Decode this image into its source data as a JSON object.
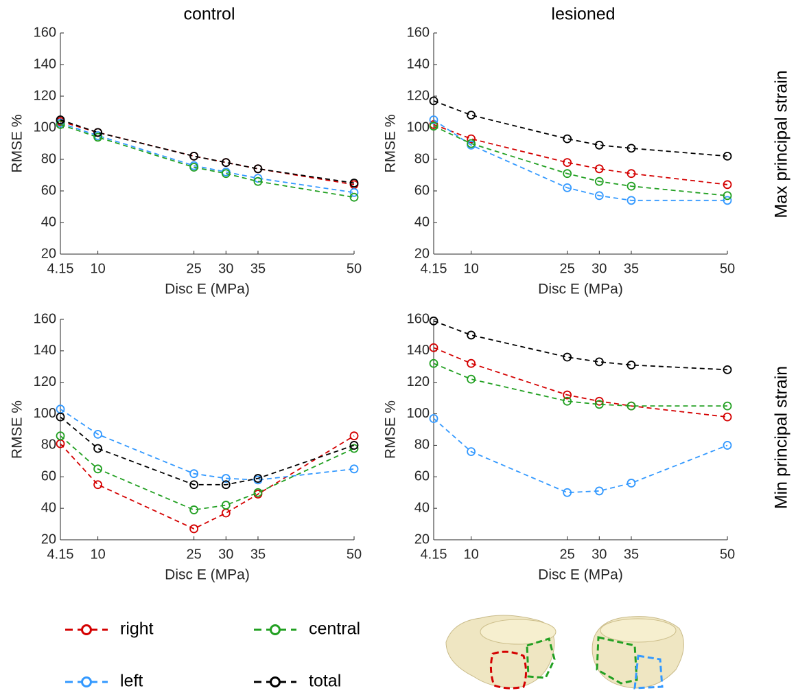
{
  "column_titles": [
    "control",
    "lesioned"
  ],
  "row_titles": [
    "Max principal strain",
    "Min principal strain"
  ],
  "chart_data": [
    {
      "type": "line",
      "xlabel": "Disc E (MPa)",
      "ylabel": "RMSE %",
      "x": [
        4.15,
        10,
        25,
        30,
        35,
        50
      ],
      "xlim": [
        4.15,
        50
      ],
      "xticks": [
        4.15,
        10,
        25,
        30,
        35,
        50
      ],
      "ylim": [
        20,
        160
      ],
      "yticks": [
        20,
        40,
        60,
        80,
        100,
        120,
        140,
        160
      ],
      "series": [
        {
          "name": "right",
          "color": "#d40000",
          "values": [
            104,
            97,
            82,
            78,
            74,
            64
          ]
        },
        {
          "name": "left",
          "color": "#3399ff",
          "values": [
            103,
            95,
            76,
            72,
            68,
            59
          ]
        },
        {
          "name": "central",
          "color": "#22a022",
          "values": [
            102,
            94,
            75,
            71,
            66,
            56
          ]
        },
        {
          "name": "total",
          "color": "#000000",
          "values": [
            105,
            97,
            82,
            78,
            74,
            65
          ]
        }
      ]
    },
    {
      "type": "line",
      "xlabel": "Disc E (MPa)",
      "ylabel": "RMSE %",
      "x": [
        4.15,
        10,
        25,
        30,
        35,
        50
      ],
      "xlim": [
        4.15,
        50
      ],
      "xticks": [
        4.15,
        10,
        25,
        30,
        35,
        50
      ],
      "ylim": [
        20,
        160
      ],
      "yticks": [
        20,
        40,
        60,
        80,
        100,
        120,
        140,
        160
      ],
      "series": [
        {
          "name": "right",
          "color": "#d40000",
          "values": [
            102,
            93,
            78,
            74,
            71,
            64
          ]
        },
        {
          "name": "left",
          "color": "#3399ff",
          "values": [
            105,
            89,
            62,
            57,
            54,
            54
          ]
        },
        {
          "name": "central",
          "color": "#22a022",
          "values": [
            101,
            90,
            71,
            66,
            63,
            57
          ]
        },
        {
          "name": "total",
          "color": "#000000",
          "values": [
            117,
            108,
            93,
            89,
            87,
            82
          ]
        }
      ]
    },
    {
      "type": "line",
      "xlabel": "Disc E (MPa)",
      "ylabel": "RMSE %",
      "x": [
        4.15,
        10,
        25,
        30,
        35,
        50
      ],
      "xlim": [
        4.15,
        50
      ],
      "xticks": [
        4.15,
        10,
        25,
        30,
        35,
        50
      ],
      "ylim": [
        20,
        160
      ],
      "yticks": [
        20,
        40,
        60,
        80,
        100,
        120,
        140,
        160
      ],
      "series": [
        {
          "name": "right",
          "color": "#d40000",
          "values": [
            81,
            55,
            27,
            37,
            49,
            86
          ]
        },
        {
          "name": "left",
          "color": "#3399ff",
          "values": [
            103,
            87,
            62,
            59,
            58,
            65
          ]
        },
        {
          "name": "central",
          "color": "#22a022",
          "values": [
            86,
            65,
            39,
            42,
            50,
            78
          ]
        },
        {
          "name": "total",
          "color": "#000000",
          "values": [
            98,
            78,
            55,
            55,
            59,
            80
          ]
        }
      ]
    },
    {
      "type": "line",
      "xlabel": "Disc E (MPa)",
      "ylabel": "RMSE %",
      "x": [
        4.15,
        10,
        25,
        30,
        35,
        50
      ],
      "xlim": [
        4.15,
        50
      ],
      "xticks": [
        4.15,
        10,
        25,
        30,
        35,
        50
      ],
      "ylim": [
        20,
        160
      ],
      "yticks": [
        20,
        40,
        60,
        80,
        100,
        120,
        140,
        160
      ],
      "series": [
        {
          "name": "right",
          "color": "#d40000",
          "values": [
            142,
            132,
            112,
            108,
            105,
            98
          ]
        },
        {
          "name": "left",
          "color": "#3399ff",
          "values": [
            97,
            76,
            50,
            51,
            56,
            80
          ]
        },
        {
          "name": "central",
          "color": "#22a022",
          "values": [
            132,
            122,
            108,
            106,
            105,
            105
          ]
        },
        {
          "name": "total",
          "color": "#000000",
          "values": [
            159,
            150,
            136,
            133,
            131,
            128
          ]
        }
      ]
    }
  ]
}
